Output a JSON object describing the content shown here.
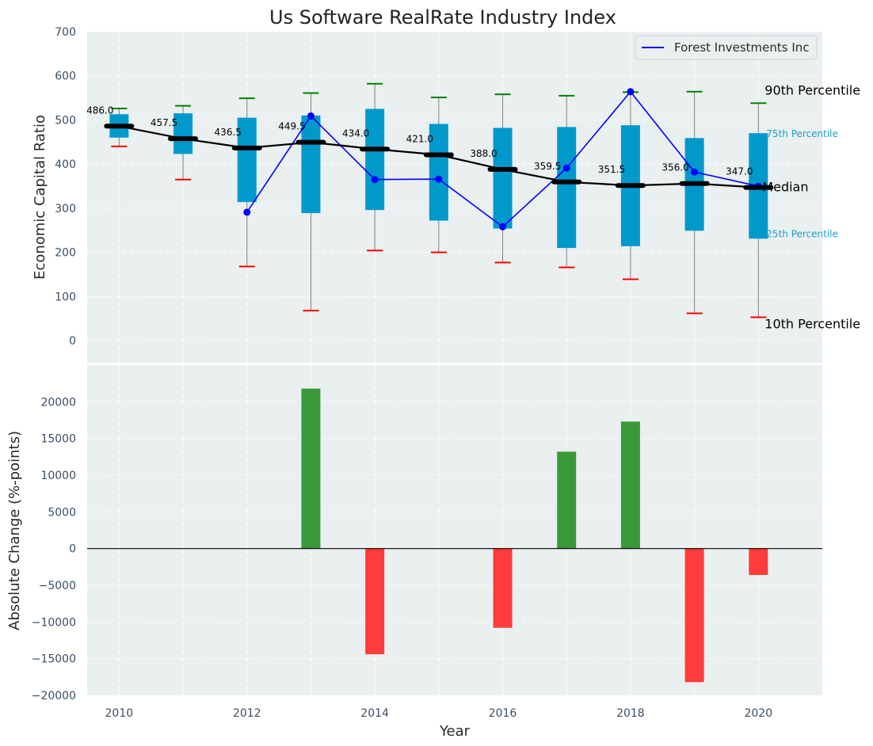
{
  "chart_data": [
    {
      "type": "box-range",
      "title": "Us Software RealRate Industry Index",
      "ylabel": "Economic Capital Ratio",
      "ylim": [
        -50,
        700
      ],
      "yticks": [
        0,
        100,
        200,
        300,
        400,
        500,
        600,
        700
      ],
      "x": [
        2010,
        2011,
        2012,
        2013,
        2014,
        2015,
        2016,
        2017,
        2018,
        2019,
        2020
      ],
      "p10": [
        440,
        365,
        168,
        68,
        204,
        200,
        177,
        166,
        139,
        62,
        53
      ],
      "p25": [
        460,
        423,
        314,
        289,
        296,
        272,
        254,
        210,
        214,
        249,
        231
      ],
      "median": [
        486.0,
        457.5,
        436.5,
        449.5,
        434.0,
        421.0,
        388.0,
        359.5,
        351.5,
        356.0,
        347.0
      ],
      "median_labels": [
        "486.0",
        "457.5",
        "436.5",
        "449.5",
        "434.0",
        "421.0",
        "388.0",
        "359.5",
        "351.5",
        "356.0",
        "347.0"
      ],
      "p75": [
        513,
        515,
        505,
        510,
        525,
        491,
        482,
        484,
        488,
        459,
        470
      ],
      "p90": [
        526,
        532,
        549,
        561,
        582,
        551,
        558,
        555,
        563,
        564,
        538
      ],
      "company": {
        "name": "Forest Investments Inc",
        "x": [
          2012,
          2013,
          2014,
          2015,
          2016,
          2017,
          2018,
          2019,
          2020
        ],
        "values": [
          291,
          509,
          365,
          366,
          258,
          391,
          564,
          382,
          350
        ]
      },
      "annotations": {
        "p90": "90th Percentile",
        "p75": "75th Percentile",
        "median": "Median",
        "p25": "25th Percentile",
        "p10": "10th Percentile"
      },
      "legend_position": "top-right",
      "grid": true
    },
    {
      "type": "bar",
      "xlabel": "Year",
      "ylabel": "Absolute Change (%-points)",
      "ylim": [
        -20000,
        25000
      ],
      "yticks": [
        -20000,
        -15000,
        -10000,
        -5000,
        0,
        5000,
        10000,
        15000,
        20000
      ],
      "x": [
        2013,
        2014,
        2016,
        2017,
        2018,
        2019,
        2020
      ],
      "values": [
        21800,
        -14400,
        -10800,
        13200,
        17300,
        -18200,
        -3600
      ],
      "xticks": [
        2010,
        2012,
        2014,
        2016,
        2018,
        2020
      ],
      "grid": true
    }
  ],
  "colors": {
    "panel_bg": "#eaeff0",
    "box": "#0099cc",
    "median": "#000000",
    "company": "#0000ff",
    "p90_cap": "#008000",
    "p10_cap": "#ff0000",
    "whisker": "#808080",
    "bar_pos": "#3a9a3a",
    "bar_neg": "#ff3b3b",
    "annotation_small": "#1ea0c8"
  }
}
